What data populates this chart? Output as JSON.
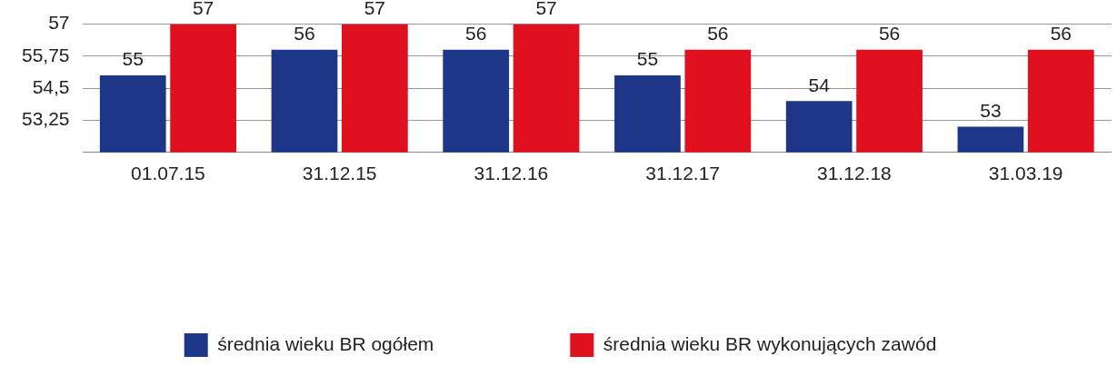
{
  "chart_data": {
    "type": "bar",
    "categories": [
      "01.07.15",
      "31.12.15",
      "31.12.16",
      "31.12.17",
      "31.12.18",
      "31.03.19"
    ],
    "series": [
      {
        "name": "średnia wieku BR ogółem",
        "color": "#1e3687",
        "values": [
          55,
          56,
          56,
          55,
          54,
          53
        ]
      },
      {
        "name": "średnia wieku BR wykonujących zawód",
        "color": "#e0101e",
        "values": [
          57,
          57,
          57,
          56,
          56,
          56
        ]
      }
    ],
    "ylim": [
      52,
      57
    ],
    "yticks": [
      {
        "value": 52,
        "label": null
      },
      {
        "value": 53.25,
        "label": "53,25"
      },
      {
        "value": 54.5,
        "label": "54,5"
      },
      {
        "value": 55.75,
        "label": "55,75"
      },
      57
    ],
    "grid": "y",
    "legend": "bottom",
    "data_labels": true
  }
}
